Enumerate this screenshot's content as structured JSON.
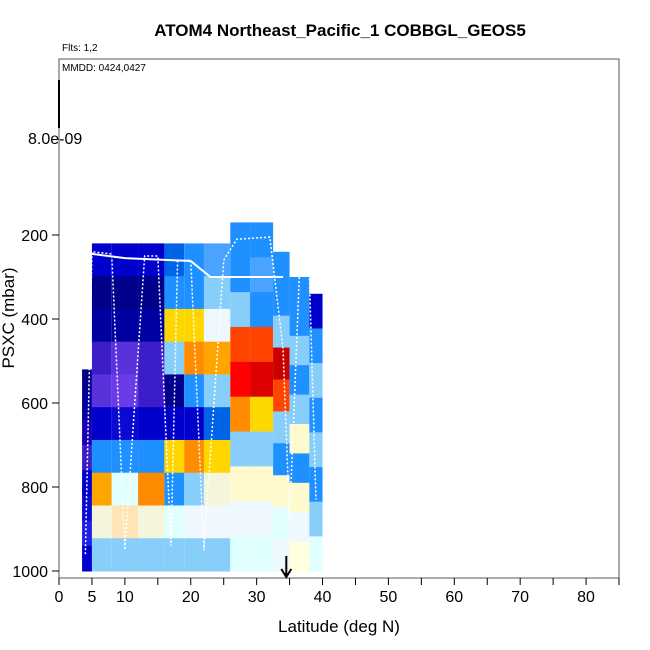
{
  "chart_data": {
    "type": "heatmap",
    "title": "ATOM4 Northeast_Pacific_1 COBBGL_GEOS5",
    "flights_text": "Flts: 1,2",
    "dates_text": "MMDD: 0424,0427",
    "colorbar_value_label": "8.0e-09",
    "xlabel": "Latitude (deg N)",
    "ylabel": "PSXC (mbar)",
    "xlim": [
      0,
      85
    ],
    "ylim": [
      1000,
      0
    ],
    "x_ticks": [
      0,
      5,
      10,
      20,
      30,
      40,
      50,
      60,
      70,
      80
    ],
    "x_minor_ticks": [
      15,
      25,
      35,
      45,
      55,
      65,
      75,
      85
    ],
    "y_ticks": [
      200,
      400,
      600,
      800,
      1000
    ],
    "marker_latitude": 34.5,
    "grid": false,
    "columns": [
      {
        "x0": 3.5,
        "x1": 5.0,
        "top": 520,
        "bottom": 1000,
        "cells": [
          "#00008b",
          "#0000a0",
          "#1a00b4",
          "#3c1ec8",
          "#0000cd",
          "#0a0ad2",
          "#1e1ee6",
          "#0000cd"
        ]
      },
      {
        "x0": 5.0,
        "x1": 8.0,
        "top": 220,
        "bottom": 1000,
        "cells": [
          "#0000cd",
          "#00008b",
          "#0000a0",
          "#3c1ec8",
          "#5a32dc",
          "#0000cd",
          "#1e90ff",
          "#ffa500",
          "#f5f5dc",
          "#87cefa"
        ]
      },
      {
        "x0": 8.0,
        "x1": 12.0,
        "top": 220,
        "bottom": 1000,
        "cells": [
          "#0000cd",
          "#00008b",
          "#0000a0",
          "#5a32dc",
          "#6a3ce6",
          "#0a0ad2",
          "#1e90ff",
          "#e0ffff",
          "#ffe4b5",
          "#87cefa"
        ]
      },
      {
        "x0": 12.0,
        "x1": 16.0,
        "top": 220,
        "bottom": 1000,
        "cells": [
          "#0000cd",
          "#00008b",
          "#0000a0",
          "#3c1ec8",
          "#3c1ec8",
          "#0000cd",
          "#1e90ff",
          "#ff8c00",
          "#f5f5dc",
          "#87cefa"
        ]
      },
      {
        "x0": 16.0,
        "x1": 19.0,
        "top": 220,
        "bottom": 1000,
        "cells": [
          "#0064e6",
          "#1e90ff",
          "#ffd700",
          "#87cefa",
          "#00008b",
          "#0000cd",
          "#ffd700",
          "#1e90ff",
          "#e0ffff",
          "#87cefa"
        ]
      },
      {
        "x0": 19.0,
        "x1": 22.0,
        "top": 220,
        "bottom": 1000,
        "cells": [
          "#1e90ff",
          "#1e90ff",
          "#ffd700",
          "#ff8c00",
          "#1e90ff",
          "#0000cd",
          "#ff8c00",
          "#87cefa",
          "#f0f8ff",
          "#87cefa"
        ]
      },
      {
        "x0": 22.0,
        "x1": 26.0,
        "top": 220,
        "bottom": 1000,
        "cells": [
          "#4aa3ff",
          "#87cefa",
          "#f0f8ff",
          "#ffa500",
          "#87cefa",
          "#0064e6",
          "#ffd700",
          "#f5f5dc",
          "#f0f8ff",
          "#87cefa"
        ]
      },
      {
        "x0": 26.0,
        "x1": 29.0,
        "top": 170,
        "bottom": 1000,
        "cells": [
          "#1e90ff",
          "#1e90ff",
          "#87cefa",
          "#ff4500",
          "#ff0000",
          "#ff8c00",
          "#87cefa",
          "#fffacd",
          "#f0f8ff",
          "#e0ffff"
        ]
      },
      {
        "x0": 29.0,
        "x1": 32.5,
        "top": 170,
        "bottom": 1000,
        "cells": [
          "#1e90ff",
          "#4aa3ff",
          "#1e90ff",
          "#ff4500",
          "#dc0000",
          "#ffd700",
          "#87cefa",
          "#fffacd",
          "#f0f8ff",
          "#e0ffff"
        ]
      },
      {
        "x0": 32.5,
        "x1": 35.0,
        "top": 240,
        "bottom": 1000,
        "cells": [
          "#1e90ff",
          "#1e90ff",
          "#87cefa",
          "#c80000",
          "#ff4500",
          "#87cefa",
          "#1e90ff",
          "#fffacd",
          "#e0ffff",
          "#f0f8ff"
        ]
      },
      {
        "x0": 35.0,
        "x1": 38.0,
        "top": 300,
        "bottom": 1000,
        "cells": [
          "#1e90ff",
          "#1e90ff",
          "#87cefa",
          "#1e90ff",
          "#87cefa",
          "#fffacd",
          "#1e90ff",
          "#fffacd",
          "#f0f8ff",
          "#ffffe0"
        ]
      },
      {
        "x0": 38.0,
        "x1": 40.0,
        "top": 340,
        "bottom": 1000,
        "cells": [
          "#0000cd",
          "#1e90ff",
          "#87cefa",
          "#1e90ff",
          "#87cefa",
          "#1e90ff",
          "#87cefa",
          "#e0ffff"
        ]
      }
    ],
    "flight_track": [
      [
        4.0,
        960
      ],
      [
        5.0,
        240
      ],
      [
        8.0,
        245
      ],
      [
        10.0,
        950
      ],
      [
        13.0,
        250
      ],
      [
        15.0,
        250
      ],
      [
        17.0,
        940
      ],
      [
        18.0,
        260
      ],
      [
        20.0,
        260
      ],
      [
        22.0,
        950
      ],
      [
        25.0,
        260
      ],
      [
        27.0,
        210
      ],
      [
        32.0,
        205
      ],
      [
        34.0,
        470
      ],
      [
        35.0,
        880
      ],
      [
        36.5,
        290
      ],
      [
        38.0,
        295
      ],
      [
        39.0,
        830
      ]
    ],
    "track_top_line": [
      [
        5.0,
        245
      ],
      [
        10.0,
        255
      ],
      [
        20.0,
        262
      ],
      [
        23.0,
        300
      ],
      [
        34.0,
        300
      ]
    ]
  }
}
